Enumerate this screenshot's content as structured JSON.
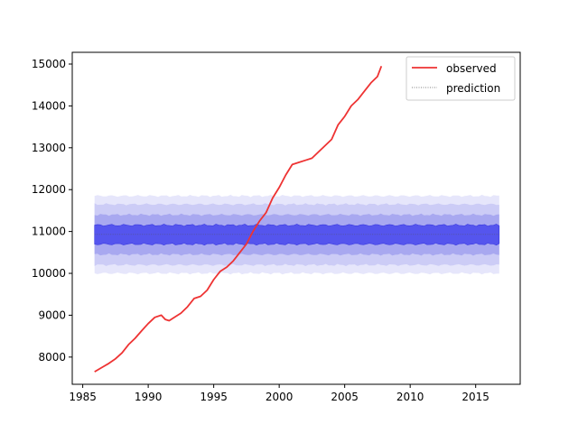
{
  "chart_data": {
    "type": "line",
    "title": "",
    "xlabel": "",
    "ylabel": "",
    "xlim": [
      1984.2,
      2018.4
    ],
    "ylim": [
      7350,
      15280
    ],
    "xticks": [
      1985,
      1990,
      1995,
      2000,
      2005,
      2010,
      2015
    ],
    "yticks": [
      8000,
      9000,
      10000,
      11000,
      12000,
      13000,
      14000,
      15000
    ],
    "xtick_labels": [
      "1985",
      "1990",
      "1995",
      "2000",
      "2005",
      "2010",
      "2015"
    ],
    "ytick_labels": [
      "8000",
      "9000",
      "10000",
      "11000",
      "12000",
      "13000",
      "14000",
      "15000"
    ],
    "grid": false,
    "legend_position": "top-right",
    "legend": [
      {
        "label": "observed",
        "style": "solid",
        "color": "#ee3333"
      },
      {
        "label": "prediction",
        "style": "dotted",
        "color": "#555555"
      }
    ],
    "series": [
      {
        "name": "observed",
        "color": "#ee3333",
        "points": [
          [
            1985.9,
            7650
          ],
          [
            1986.5,
            7760
          ],
          [
            1987.0,
            7850
          ],
          [
            1987.5,
            7960
          ],
          [
            1988.0,
            8100
          ],
          [
            1988.5,
            8300
          ],
          [
            1989.0,
            8450
          ],
          [
            1989.5,
            8630
          ],
          [
            1990.0,
            8800
          ],
          [
            1990.5,
            8950
          ],
          [
            1991.0,
            9000
          ],
          [
            1991.3,
            8900
          ],
          [
            1991.6,
            8870
          ],
          [
            1992.0,
            8950
          ],
          [
            1992.5,
            9050
          ],
          [
            1993.0,
            9200
          ],
          [
            1993.5,
            9400
          ],
          [
            1994.0,
            9450
          ],
          [
            1994.5,
            9600
          ],
          [
            1995.0,
            9850
          ],
          [
            1995.5,
            10050
          ],
          [
            1996.0,
            10150
          ],
          [
            1996.5,
            10300
          ],
          [
            1997.0,
            10500
          ],
          [
            1997.5,
            10700
          ],
          [
            1998.0,
            11000
          ],
          [
            1998.5,
            11250
          ],
          [
            1999.0,
            11450
          ],
          [
            1999.5,
            11800
          ],
          [
            2000.0,
            12050
          ],
          [
            2000.5,
            12350
          ],
          [
            2001.0,
            12600
          ],
          [
            2001.5,
            12650
          ],
          [
            2002.0,
            12700
          ],
          [
            2002.5,
            12750
          ],
          [
            2003.0,
            12900
          ],
          [
            2003.5,
            13050
          ],
          [
            2004.0,
            13200
          ],
          [
            2004.5,
            13550
          ],
          [
            2005.0,
            13750
          ],
          [
            2005.5,
            14000
          ],
          [
            2006.0,
            14150
          ],
          [
            2006.5,
            14350
          ],
          [
            2007.0,
            14550
          ],
          [
            2007.5,
            14700
          ],
          [
            2007.8,
            14950
          ]
        ]
      },
      {
        "name": "prediction",
        "color": "#555555",
        "style": "dotted",
        "x_range": [
          1985.9,
          2016.8
        ],
        "mean": 10930,
        "bands": [
          {
            "lower": 10000,
            "upper": 11850,
            "fill": "#e6e6fb"
          },
          {
            "lower": 10200,
            "upper": 11650,
            "fill": "#ccccf6"
          },
          {
            "lower": 10450,
            "upper": 11400,
            "fill": "#a8a8f0"
          },
          {
            "lower": 10700,
            "upper": 11150,
            "fill": "#5555ee"
          }
        ]
      }
    ]
  }
}
